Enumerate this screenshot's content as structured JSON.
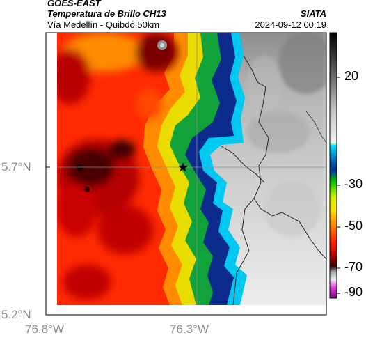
{
  "header": {
    "satellite": "GOES-EAST",
    "product": "Temperatura de Brillo CH13",
    "subtitle": "Vía Medellín - Quibdó 50km",
    "agency": "SIATA",
    "timestamp": "2024-09-12 00:19"
  },
  "axes": {
    "lat_labels": [
      "5.7°N",
      "5.2°N"
    ],
    "lon_labels": [
      "76.8°W",
      "76.3°W"
    ]
  },
  "colorbar": {
    "ticks": [
      "20",
      "-30",
      "-50",
      "-70",
      "-90"
    ],
    "label_color": "#000000",
    "axis_label_color": "#8c8c8c"
  },
  "map": {
    "marker_icon": "star-icon",
    "land_palette": [
      "#e9e9e9",
      "#9a9a9a"
    ],
    "cloud_palette": [
      "#3a0000",
      "#b00000",
      "#ff1e00",
      "#ff8c00",
      "#ffd200",
      "#7ce000",
      "#00a040",
      "#0a2a8c",
      "#00c0e8"
    ]
  }
}
